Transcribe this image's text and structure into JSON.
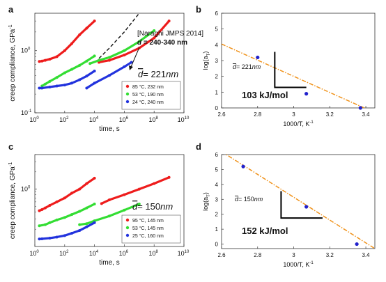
{
  "chart_data": [
    {
      "panel_label": "a",
      "type": "scatter",
      "title": "",
      "xlabel": "time, s",
      "ylabel": "creep compliance, GPa",
      "ylabel_sup": "-1",
      "x_scale": "log",
      "y_scale": "log",
      "xlim": [
        1,
        10000000000
      ],
      "ylim": [
        0.1,
        4
      ],
      "x_ticks": [
        {
          "value": 1,
          "base": "10",
          "exp": "0"
        },
        {
          "value": 100,
          "base": "10",
          "exp": "2"
        },
        {
          "value": 10000,
          "base": "10",
          "exp": "4"
        },
        {
          "value": 1000000,
          "base": "10",
          "exp": "6"
        },
        {
          "value": 100000000,
          "base": "10",
          "exp": "8"
        },
        {
          "value": 10000000000,
          "base": "10",
          "exp": "10"
        }
      ],
      "y_ticks": [
        {
          "value": 0.1,
          "base": "10",
          "exp": "-1"
        },
        {
          "value": 1,
          "base": "10",
          "exp": "0"
        }
      ],
      "annotation": {
        "d_bar": "d",
        "d_value": "= 221",
        "d_unit": "nm"
      },
      "note": {
        "line1": "[Naraghi JMPS 2014]",
        "line2_d": "d",
        "line2_rest": " = 240-340 nm",
        "arrow_color": "#111111"
      },
      "legend_position": "bottom-right",
      "series": [
        {
          "name": "85 °C, 232 nm",
          "color": "#ee1c1c",
          "segments": [
            {
              "x": [
                2,
                3,
                5,
                10,
                30,
                100,
                300,
                1000,
                3000,
                10000
              ],
              "y": [
                0.67,
                0.68,
                0.7,
                0.73,
                0.8,
                1.0,
                1.3,
                1.8,
                2.3,
                3.0
              ]
            },
            {
              "x": [
                20000,
                100000,
                1000000,
                10000000,
                100000000,
                1000000000
              ],
              "y": [
                0.65,
                0.7,
                0.85,
                1.1,
                1.6,
                3.0
              ]
            }
          ]
        },
        {
          "name": "53 °C, 190 nm",
          "color": "#33dd33",
          "segments": [
            {
              "x": [
                3,
                5,
                10,
                30,
                100,
                300,
                1000,
                3000,
                10000
              ],
              "y": [
                0.27,
                0.29,
                0.32,
                0.37,
                0.44,
                0.5,
                0.58,
                0.68,
                0.82
              ]
            },
            {
              "x": [
                5000,
                20000,
                100000,
                1000000,
                10000000,
                100000000
              ],
              "y": [
                0.62,
                0.7,
                0.78,
                1.0,
                1.4,
                2.1
              ]
            }
          ]
        },
        {
          "name": "24 °C, 240 nm",
          "color": "#2233dd",
          "segments": [
            {
              "x": [
                2,
                3,
                10,
                30,
                100,
                300,
                1000,
                3000,
                10000
              ],
              "y": [
                0.25,
                0.25,
                0.26,
                0.27,
                0.28,
                0.3,
                0.34,
                0.39,
                0.47
              ]
            },
            {
              "x": [
                3000,
                10000,
                100000,
                1000000,
                3000000
              ],
              "y": [
                0.25,
                0.3,
                0.4,
                0.55,
                0.65
              ]
            }
          ]
        }
      ],
      "reference_curve": {
        "x": [
          20000,
          100000,
          1000000,
          10000000
        ],
        "y": [
          0.75,
          1.1,
          2.0,
          4.0
        ]
      }
    },
    {
      "panel_label": "b",
      "type": "scatter",
      "title": "",
      "xlabel": "1000/T, K",
      "xlabel_sup": "-1",
      "ylabel": "log(a",
      "ylabel_sub": "T",
      "ylabel_close": ")",
      "xlim": [
        2.6,
        3.45
      ],
      "ylim": [
        0,
        6
      ],
      "x_ticks": [
        "2.6",
        "2.8",
        "3",
        "3.2",
        "3.4"
      ],
      "y_ticks": [
        "0",
        "1",
        "2",
        "3",
        "4",
        "5",
        "6"
      ],
      "annotation": {
        "d_bar": "d",
        "d_value": "= 221",
        "d_unit": "nm"
      },
      "slope_label": "103 kJ/mol",
      "fit_line": {
        "x": [
          2.6,
          3.45
        ],
        "y": [
          4.05,
          -0.3
        ],
        "color": "#f0921a"
      },
      "points": {
        "color": "#2222cc",
        "x": [
          2.8,
          3.07,
          3.37
        ],
        "y": [
          3.2,
          0.9,
          0.0
        ]
      },
      "slope_triangle": {
        "x0": 2.895,
        "x1": 3.07,
        "y_top": 3.55,
        "y_bottom": 1.3
      }
    },
    {
      "panel_label": "c",
      "type": "scatter",
      "title": "",
      "xlabel": "time, s",
      "ylabel": "creep compliance, GPa",
      "ylabel_sup": "-1",
      "x_scale": "log",
      "y_scale": "log",
      "xlim": [
        1,
        10000000000
      ],
      "ylim": [
        0.1,
        4
      ],
      "x_ticks": [
        {
          "value": 1,
          "base": "10",
          "exp": "0"
        },
        {
          "value": 100,
          "base": "10",
          "exp": "2"
        },
        {
          "value": 10000,
          "base": "10",
          "exp": "4"
        },
        {
          "value": 1000000,
          "base": "10",
          "exp": "6"
        },
        {
          "value": 100000000,
          "base": "10",
          "exp": "8"
        },
        {
          "value": 10000000000,
          "base": "10",
          "exp": "10"
        }
      ],
      "y_ticks": [
        {
          "value": 1,
          "base": "10",
          "exp": "0"
        }
      ],
      "annotation": {
        "d_bar": "d",
        "d_value": "= 150",
        "d_unit": "nm"
      },
      "legend_position": "bottom-right",
      "series": [
        {
          "name": "95 °C, 145 nm",
          "color": "#ee1c1c",
          "segments": [
            {
              "x": [
                2,
                3,
                5,
                10,
                30,
                100,
                300,
                1000,
                3000,
                10000
              ],
              "y": [
                0.42,
                0.44,
                0.47,
                0.52,
                0.6,
                0.7,
                0.85,
                1.0,
                1.25,
                1.55
              ]
            },
            {
              "x": [
                30000,
                100000,
                1000000,
                10000000,
                100000000,
                1000000000
              ],
              "y": [
                0.56,
                0.65,
                0.8,
                1.0,
                1.25,
                1.6
              ]
            }
          ]
        },
        {
          "name": "53 °C, 145 nm",
          "color": "#33dd33",
          "segments": [
            {
              "x": [
                2,
                5,
                10,
                30,
                100,
                300,
                1000,
                3000,
                10000
              ],
              "y": [
                0.23,
                0.24,
                0.26,
                0.29,
                0.32,
                0.36,
                0.41,
                0.47,
                0.55
              ]
            },
            {
              "x": [
                1000,
                3000,
                10000,
                100000,
                1000000,
                10000000
              ],
              "y": [
                0.24,
                0.25,
                0.28,
                0.34,
                0.43,
                0.55
              ]
            }
          ]
        },
        {
          "name": "25 °C, 160 nm",
          "color": "#2233dd",
          "segments": [
            {
              "x": [
                2,
                3,
                10,
                30,
                100,
                300,
                1000,
                3000,
                10000
              ],
              "y": [
                0.135,
                0.136,
                0.14,
                0.146,
                0.155,
                0.17,
                0.19,
                0.22,
                0.26
              ]
            }
          ]
        }
      ]
    },
    {
      "panel_label": "d",
      "type": "scatter",
      "title": "",
      "xlabel": "1000/T, K",
      "xlabel_sup": "-1",
      "ylabel": "log(a",
      "ylabel_sub": "T",
      "ylabel_close": ")",
      "xlim": [
        2.6,
        3.45
      ],
      "ylim": [
        -0.3,
        6
      ],
      "x_ticks": [
        "2.6",
        "2.8",
        "3",
        "3.2",
        "3.4"
      ],
      "y_ticks": [
        "0",
        "1",
        "2",
        "3",
        "4",
        "5",
        "6"
      ],
      "annotation": {
        "d_bar": "d",
        "d_value": "= 150",
        "d_unit": "nm"
      },
      "slope_label": "152 kJ/mol",
      "fit_line": {
        "x": [
          2.6,
          3.45
        ],
        "y": [
          6.2,
          -0.3
        ],
        "color": "#f0921a"
      },
      "points": {
        "color": "#2222cc",
        "x": [
          2.72,
          3.07,
          3.35
        ],
        "y": [
          5.2,
          2.5,
          0.0
        ]
      },
      "slope_triangle": {
        "x0": 2.93,
        "x1": 3.16,
        "y_top": 3.55,
        "y_bottom": 1.75
      }
    }
  ]
}
